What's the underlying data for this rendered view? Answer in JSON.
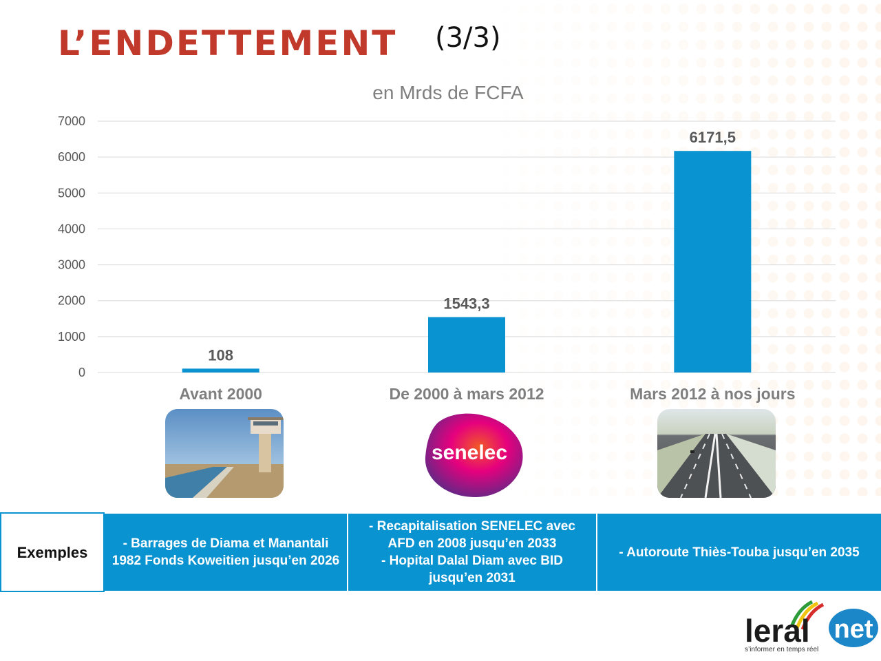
{
  "slide": {
    "title": "L’ENDETTEMENT",
    "title_suffix": "(3/3)"
  },
  "chart_data": {
    "type": "bar",
    "title": "en Mrds de FCFA",
    "xlabel": "",
    "ylabel": "",
    "categories": [
      "Avant 2000",
      "De 2000 à mars 2012",
      "Mars 2012 à nos jours"
    ],
    "values": [
      108,
      1543.3,
      6171.5
    ],
    "data_labels": [
      "108",
      "1543,3",
      "6171,5"
    ],
    "ylim": [
      0,
      7000
    ],
    "yticks": [
      0,
      1000,
      2000,
      3000,
      4000,
      5000,
      6000,
      7000
    ],
    "grid": true,
    "legend": "none",
    "bar_color": "#0a93d1"
  },
  "images": {
    "senelec_logo_text": "senelec"
  },
  "table": {
    "header": "Exemples",
    "cells": [
      "- Barrages de Diama et Manantali\n1982 Fonds Koweitien jusqu’en 2026",
      "- Recapitalisation SENELEC avec AFD en 2008 jusqu’en 2033\n- Hopital Dalal Diam avec BID jusqu’en 2031",
      "- Autoroute Thiès-Touba jusqu’en 2035"
    ]
  },
  "logo": {
    "brand": "leral",
    "suffix": "net",
    "tagline": "s’informer en temps réel"
  },
  "colors": {
    "title": "#c0392b",
    "bar": "#0a93d1",
    "table_fill": "#0a93d1"
  }
}
